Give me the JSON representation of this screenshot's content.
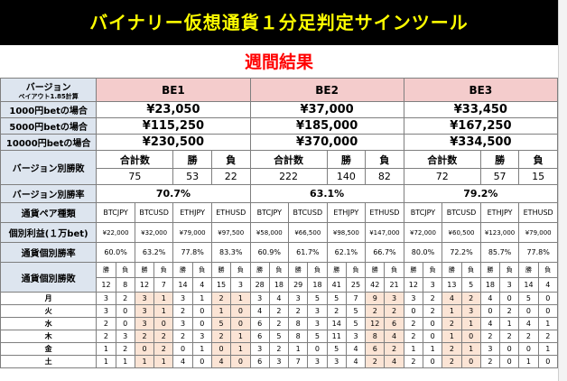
{
  "title": "バイナリー仮想通貨１分足判定サインツール",
  "subtitle": "週間結果",
  "labels": {
    "version": "バージョン",
    "payout": "ペイアウト1.85計算",
    "bet1000": "1000円betの場合",
    "bet5000": "5000円betの場合",
    "bet10000": "10000円betの場合",
    "version_wl": "バージョン別勝敗",
    "version_rate": "バージョン別勝率",
    "pair_type": "通貨ペア種類",
    "profit": "個別利益(１万bet)",
    "pair_rate": "通貨個別勝率",
    "pair_wl": "通貨個別勝敗"
  },
  "headers": {
    "total": "合計数",
    "win": "勝",
    "loss": "負"
  },
  "versions": [
    {
      "name": "BE1",
      "bet1000": "¥23,050",
      "bet5000": "¥115,250",
      "bet10000": "¥230,500",
      "total": "75",
      "wins": "53",
      "losses": "22",
      "rate": "70.7%",
      "pairs": [
        {
          "pair": "BTCJPY",
          "profit": "¥22,000",
          "rate": "60.0%",
          "w": "12",
          "l": "8"
        },
        {
          "pair": "BTCUSD",
          "profit": "¥32,000",
          "rate": "63.2%",
          "w": "12",
          "l": "7"
        },
        {
          "pair": "ETHJPY",
          "profit": "¥79,000",
          "rate": "77.8%",
          "w": "14",
          "l": "4"
        },
        {
          "pair": "ETHUSD",
          "profit": "¥97,500",
          "rate": "83.3%",
          "w": "15",
          "l": "3"
        }
      ]
    },
    {
      "name": "BE2",
      "bet1000": "¥37,000",
      "bet5000": "¥185,000",
      "bet10000": "¥370,000",
      "total": "222",
      "wins": "140",
      "losses": "82",
      "rate": "63.1%",
      "pairs": [
        {
          "pair": "BTCJPY",
          "profit": "¥58,000",
          "rate": "60.9%",
          "w": "28",
          "l": "18"
        },
        {
          "pair": "BTCUSD",
          "profit": "¥66,500",
          "rate": "61.7%",
          "w": "29",
          "l": "18"
        },
        {
          "pair": "ETHJPY",
          "profit": "¥98,500",
          "rate": "62.1%",
          "w": "41",
          "l": "25"
        },
        {
          "pair": "ETHUSD",
          "profit": "¥147,000",
          "rate": "66.7%",
          "w": "42",
          "l": "21"
        }
      ]
    },
    {
      "name": "BE3",
      "bet1000": "¥33,450",
      "bet5000": "¥167,250",
      "bet10000": "¥334,500",
      "total": "72",
      "wins": "57",
      "losses": "15",
      "rate": "79.2%",
      "pairs": [
        {
          "pair": "BTCJPY",
          "profit": "¥72,000",
          "rate": "80.0%",
          "w": "12",
          "l": "3"
        },
        {
          "pair": "BTCUSD",
          "profit": "¥60,500",
          "rate": "72.2%",
          "w": "13",
          "l": "5"
        },
        {
          "pair": "ETHJPY",
          "profit": "¥123,000",
          "rate": "85.7%",
          "w": "18",
          "l": "3"
        },
        {
          "pair": "ETHUSD",
          "profit": "¥79,000",
          "rate": "77.8%",
          "w": "14",
          "l": "4"
        }
      ]
    }
  ],
  "daily": [
    {
      "day": "月",
      "cells": [
        "3",
        "2",
        "3",
        "1",
        "3",
        "1",
        "2",
        "1",
        "3",
        "4",
        "3",
        "5",
        "5",
        "7",
        "9",
        "3",
        "3",
        "2",
        "4",
        "2",
        "4",
        "0",
        "5",
        "0"
      ]
    },
    {
      "day": "火",
      "cells": [
        "3",
        "0",
        "3",
        "1",
        "2",
        "0",
        "1",
        "0",
        "4",
        "2",
        "2",
        "3",
        "2",
        "5",
        "2",
        "2",
        "0",
        "2",
        "1",
        "3",
        "0",
        "2",
        "0",
        "0"
      ]
    },
    {
      "day": "水",
      "cells": [
        "2",
        "0",
        "3",
        "0",
        "3",
        "0",
        "5",
        "0",
        "6",
        "2",
        "8",
        "3",
        "14",
        "5",
        "12",
        "6",
        "2",
        "0",
        "2",
        "1",
        "4",
        "1",
        "4",
        "1"
      ]
    },
    {
      "day": "木",
      "cells": [
        "2",
        "3",
        "2",
        "2",
        "2",
        "3",
        "2",
        "1",
        "6",
        "5",
        "8",
        "5",
        "11",
        "3",
        "8",
        "4",
        "2",
        "0",
        "1",
        "0",
        "2",
        "2",
        "2",
        "2"
      ]
    },
    {
      "day": "金",
      "cells": [
        "1",
        "2",
        "0",
        "2",
        "0",
        "1",
        "0",
        "1",
        "3",
        "2",
        "1",
        "0",
        "5",
        "4",
        "6",
        "2",
        "1",
        "1",
        "2",
        "1",
        "3",
        "0",
        "0",
        "1"
      ]
    },
    {
      "day": "土",
      "cells": [
        "1",
        "1",
        "1",
        "1",
        "4",
        "0",
        "4",
        "0",
        "6",
        "3",
        "7",
        "3",
        "3",
        "4",
        "2",
        "4",
        "2",
        "0",
        "2",
        "0",
        "2",
        "0",
        "1",
        "0"
      ]
    }
  ],
  "colors": {
    "title_bg": "#000000",
    "title_text": "#ffff00",
    "subtitle_text": "#ff0000",
    "label_bg": "#dde5ef",
    "header_pink": "#f4cccc",
    "loss_cell_bg": "#fbe4d5"
  }
}
